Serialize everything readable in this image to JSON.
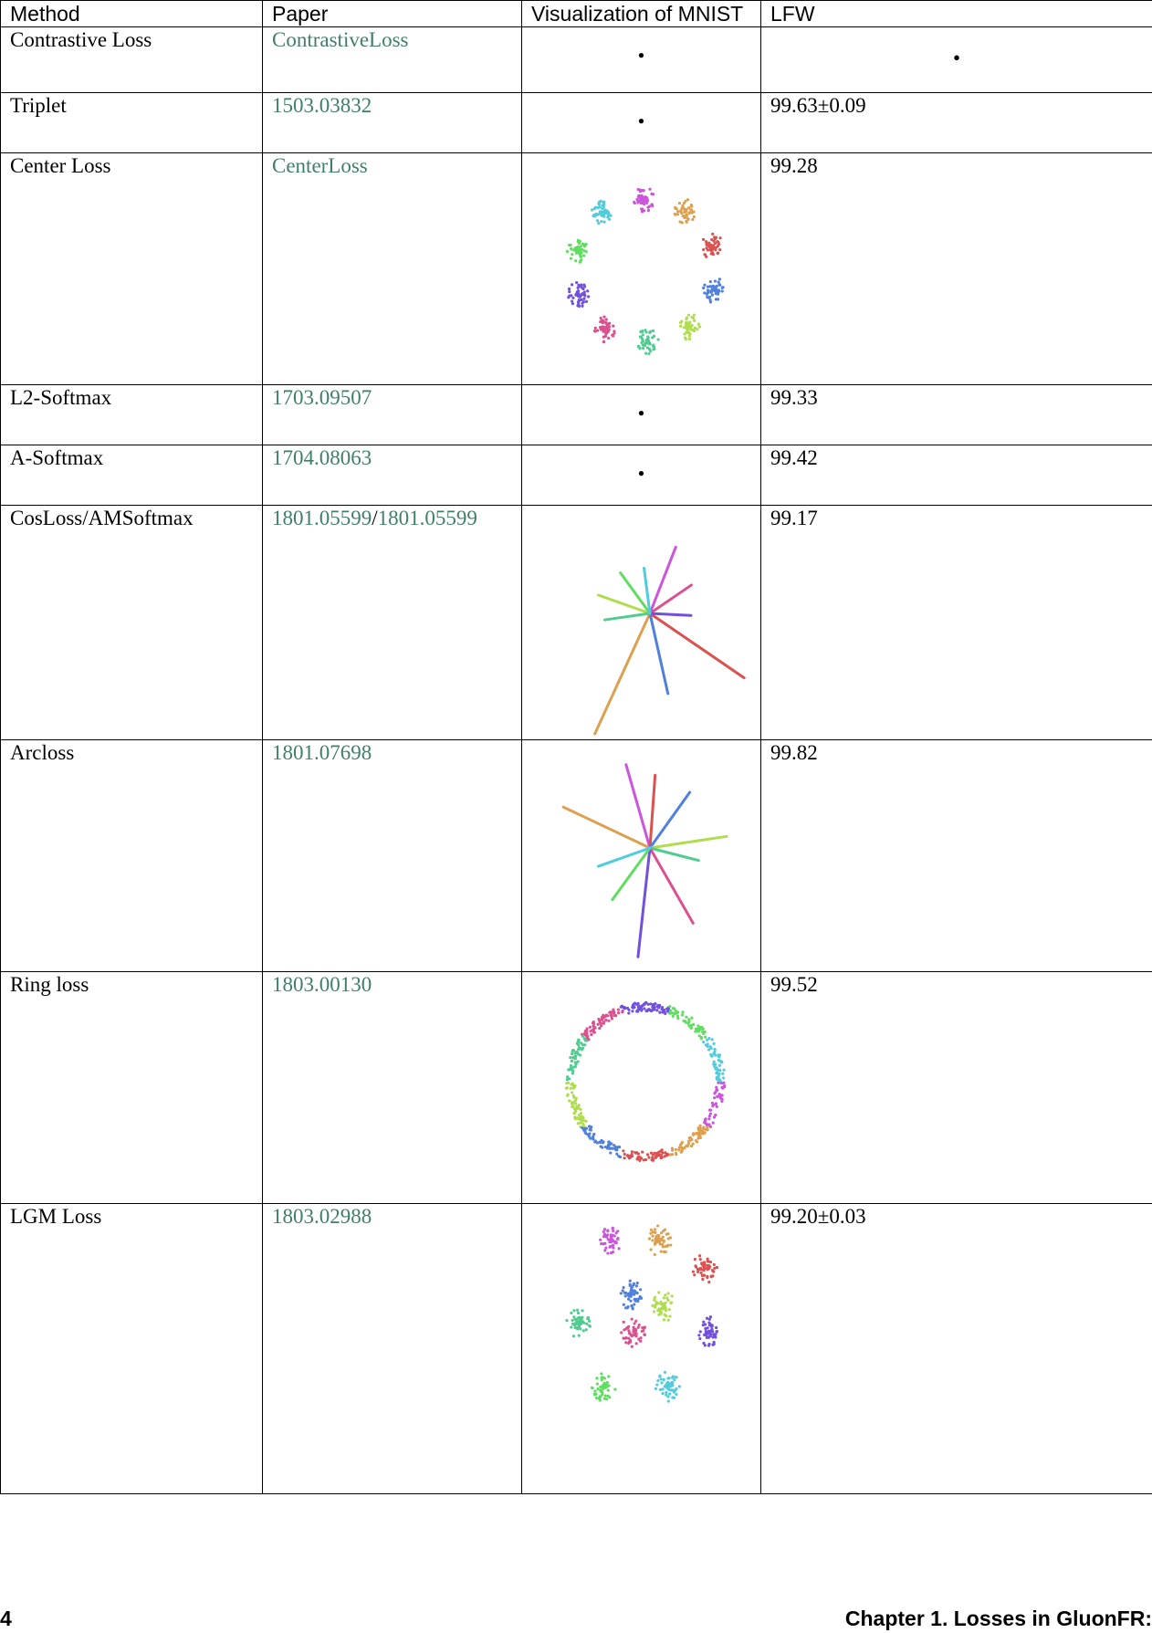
{
  "table": {
    "headers": [
      "Method",
      "Paper",
      "Visualization of MNIST",
      "LFW"
    ],
    "rows": [
      {
        "method": "Contrastive Loss",
        "papers": [
          "ContrastiveLoss"
        ],
        "visualization": "bullet",
        "lfw": "•"
      },
      {
        "method": "Triplet",
        "papers": [
          "1503.03832"
        ],
        "visualization": "bullet",
        "lfw": "99.63±0.09"
      },
      {
        "method": "Center Loss",
        "papers": [
          "CenterLoss"
        ],
        "visualization": "ring-clusters",
        "lfw": "99.28"
      },
      {
        "method": "L2-Softmax",
        "papers": [
          "1703.09507"
        ],
        "visualization": "bullet",
        "lfw": "99.33"
      },
      {
        "method": "A-Softmax",
        "papers": [
          "1704.08063"
        ],
        "visualization": "bullet",
        "lfw": "99.42"
      },
      {
        "method": "CosLoss/AMSoftmax",
        "papers": [
          "1801.05599",
          "1801.05599"
        ],
        "visualization": "star-rays",
        "lfw": "99.17"
      },
      {
        "method": "Arcloss",
        "papers": [
          "1801.07698"
        ],
        "visualization": "star-rays",
        "lfw": "99.82"
      },
      {
        "method": "Ring loss",
        "papers": [
          "1803.00130"
        ],
        "visualization": "ring",
        "lfw": "99.52"
      },
      {
        "method": "LGM Loss",
        "papers": [
          "1803.02988"
        ],
        "visualization": "gaussian-clusters",
        "lfw": "99.20±0.03"
      }
    ]
  },
  "footer": {
    "page_number": "4",
    "chapter": "Chapter 1.  Losses in GluonFR:"
  },
  "colors": {
    "link": "#3f7f6a",
    "clusters": [
      "#cc55dd",
      "#dda050",
      "#dd5050",
      "#5080dd",
      "#b0dd50",
      "#50cc90",
      "#dd5090",
      "#7050dd",
      "#60dd60",
      "#50ccdd"
    ]
  }
}
